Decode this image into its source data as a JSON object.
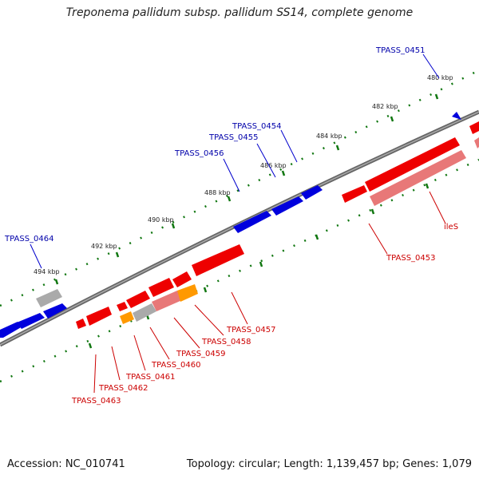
{
  "title": "Treponema pallidum subsp. pallidum SS14, complete genome",
  "footer": {
    "accession": "Accession: NC_010741",
    "summary": "Topology: circular; Length: 1,139,457 bp; Genes: 1,079"
  },
  "colors": {
    "forward_gene": "#0000dd",
    "reverse_gene": "#ee0000",
    "reverse_gene_light": "#e87878",
    "other_gene": "#ff9900",
    "pseudo_gene": "#aaaaaa",
    "backbone": "#777777",
    "tick": "#117711",
    "forward_label": "#0000aa",
    "reverse_label": "#cc0000"
  },
  "scale_ticks": [
    "480 kbp",
    "482 kbp",
    "484 kbp",
    "486 kbp",
    "488 kbp",
    "490 kbp",
    "492 kbp",
    "494 kbp"
  ],
  "forward_labels": [
    "TPASS_0451",
    "TPASS_0454",
    "TPASS_0455",
    "TPASS_0456",
    "TPASS_0464"
  ],
  "reverse_labels": [
    "TPASS_0453",
    "ileS",
    "TPASS_0457",
    "TPASS_0458",
    "TPASS_0459",
    "TPASS_0460",
    "TPASS_0461",
    "TPASS_0462",
    "TPASS_0463"
  ]
}
